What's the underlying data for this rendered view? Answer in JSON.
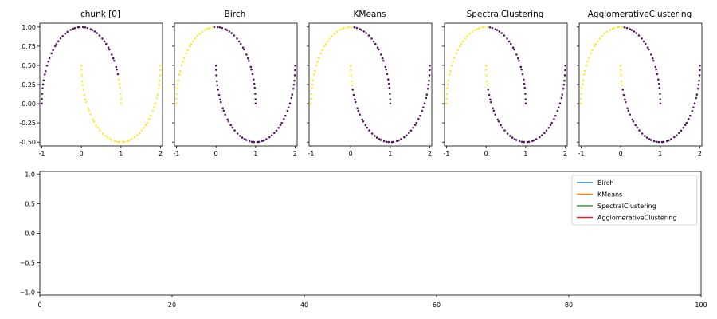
{
  "chart_data": [
    {
      "type": "scatter",
      "title": "chunk [0]",
      "xlim": [
        -1.05,
        2.05
      ],
      "ylim": [
        -0.55,
        1.05
      ],
      "xticks": [
        "-1",
        "0",
        "1",
        "2"
      ],
      "yticks": [
        "1.00",
        "0.75",
        "0.50",
        "0.25",
        "0.00",
        "-0.25",
        "-0.50"
      ],
      "colors": {
        "cluster_0": "#440154",
        "cluster_1": "#fde725"
      },
      "outer_moon_cluster": 0,
      "inner_moon_cluster": 1,
      "overrides": {
        "outer_right_end_cluster": 1
      }
    },
    {
      "type": "scatter",
      "title": "Birch",
      "xlim": [
        -1.05,
        2.05
      ],
      "ylim": [
        -0.55,
        1.05
      ],
      "xticks": [
        "-1",
        "0",
        "1",
        "2"
      ],
      "colors": {
        "cluster_0": "#440154",
        "cluster_1": "#fde725"
      },
      "split_x": -0.05,
      "left_cluster": 1,
      "right_cluster": 0,
      "inner_top_cluster": 0
    },
    {
      "type": "scatter",
      "title": "KMeans",
      "xlim": [
        -1.05,
        2.05
      ],
      "ylim": [
        -0.55,
        1.05
      ],
      "xticks": [
        "-1",
        "0",
        "1",
        "2"
      ],
      "colors": {
        "cluster_0": "#440154",
        "cluster_1": "#fde725"
      },
      "split_x": 0.05,
      "left_cluster": 1,
      "right_cluster": 0
    },
    {
      "type": "scatter",
      "title": "SpectralClustering",
      "xlim": [
        -1.05,
        2.05
      ],
      "ylim": [
        -0.55,
        1.05
      ],
      "xticks": [
        "-1",
        "0",
        "1",
        "2"
      ],
      "colors": {
        "cluster_0": "#440154",
        "cluster_1": "#fde725"
      },
      "split_x": 0.05,
      "left_cluster": 1,
      "right_cluster": 0
    },
    {
      "type": "scatter",
      "title": "AgglomerativeClustering",
      "xlim": [
        -1.05,
        2.05
      ],
      "ylim": [
        -0.55,
        1.05
      ],
      "xticks": [
        "-1",
        "0",
        "1",
        "2"
      ],
      "colors": {
        "cluster_0": "#440154",
        "cluster_1": "#fde725"
      },
      "split_x": 0.05,
      "left_cluster": 1,
      "right_cluster": 0
    },
    {
      "type": "line",
      "xlim": [
        0,
        100
      ],
      "ylim": [
        -1.05,
        1.05
      ],
      "xticks": [
        "0",
        "20",
        "40",
        "60",
        "80",
        "100"
      ],
      "yticks": [
        "1.0",
        "0.5",
        "0.0",
        "−0.5",
        "−1.0"
      ],
      "series": [
        {
          "name": "Birch",
          "color": "#1f77b4",
          "values": []
        },
        {
          "name": "KMeans",
          "color": "#ff7f0e",
          "values": []
        },
        {
          "name": "SpectralClustering",
          "color": "#2ca02c",
          "values": []
        },
        {
          "name": "AgglomerativeClustering",
          "color": "#d62728",
          "values": []
        }
      ],
      "legend_position": "upper right"
    }
  ]
}
